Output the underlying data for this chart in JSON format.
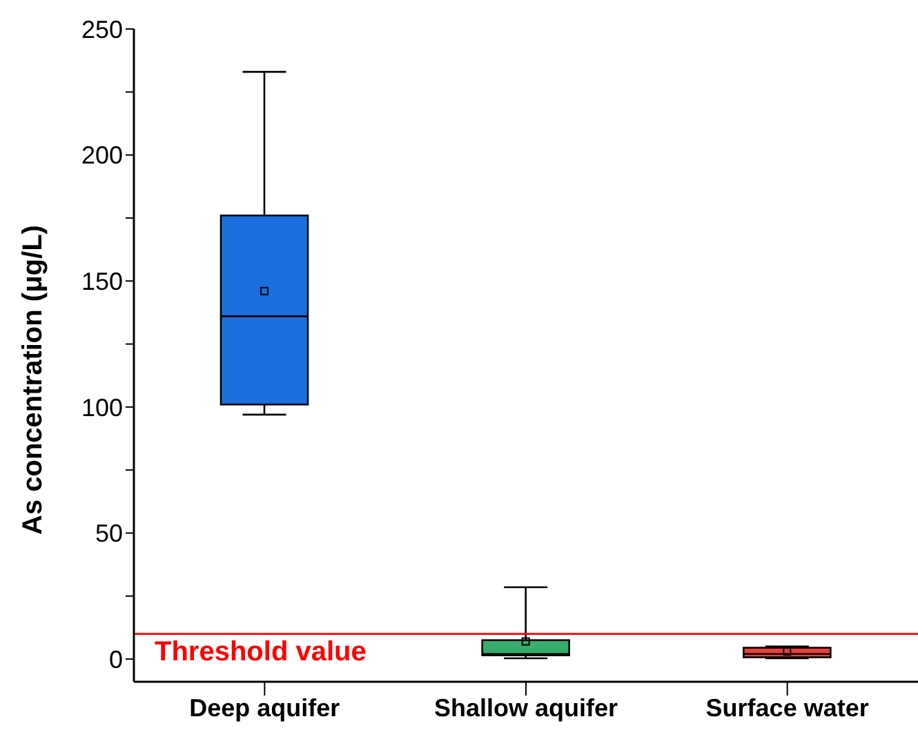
{
  "chart_data": {
    "type": "box",
    "ylabel": "As concentration (μg/L)",
    "categories": [
      "Deep aquifer",
      "Shallow aquifer",
      "Surface water"
    ],
    "colors": [
      "#1a6fdf",
      "#37ad6b",
      "#e8413c"
    ],
    "boxes": [
      {
        "low": 97,
        "q1": 101,
        "median": 136,
        "q3": 176,
        "high": 233,
        "mean": 146
      },
      {
        "low": 0.3,
        "q1": 1.5,
        "median": 2,
        "q3": 7.5,
        "high": 28.5,
        "mean": 7
      },
      {
        "low": 0.3,
        "q1": 0.7,
        "median": 2,
        "q3": 4.5,
        "high": 5,
        "mean": 3
      }
    ],
    "ylim": [
      -9,
      250
    ],
    "yticks": [
      0,
      {
        "value": 25,
        "label": null
      },
      50,
      {
        "value": 75,
        "label": null
      },
      100,
      {
        "value": 125,
        "label": null
      },
      150,
      {
        "value": 175,
        "label": null
      },
      200,
      {
        "value": 225,
        "label": null
      },
      250
    ],
    "marker": "square",
    "ref_lines": [
      {
        "axis": "y",
        "value": 10,
        "label": "Threshold value",
        "color": "#ff0000"
      }
    ]
  }
}
